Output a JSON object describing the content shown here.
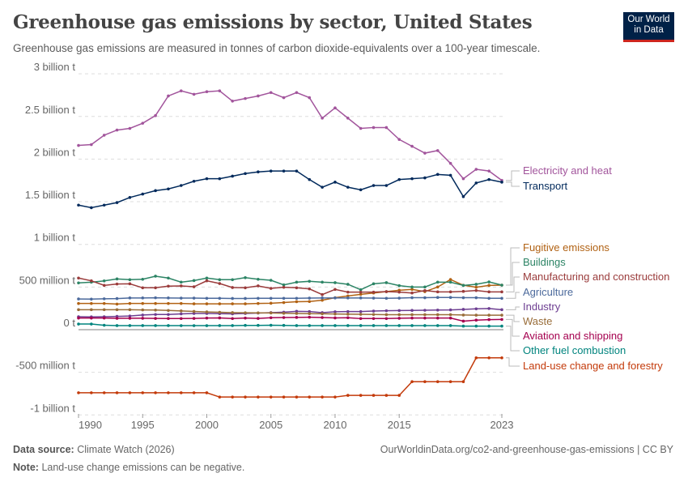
{
  "header": {
    "title": "Greenhouse gas emissions by sector, United States",
    "subtitle": "Greenhouse gas emissions are measured in tonnes of carbon dioxide-equivalents over a 100-year timescale.",
    "logo": "Our World in Data"
  },
  "footer": {
    "source_label": "Data source:",
    "source": "Climate Watch (2026)",
    "url": "OurWorldinData.org/co2-and-greenhouse-gas-emissions | CC BY",
    "note_label": "Note:",
    "note": "Land-use change emissions can be negative."
  },
  "chart_data": {
    "type": "line",
    "title": "Greenhouse gas emissions by sector, United States",
    "xlabel": "",
    "ylabel": "",
    "ylim": [
      -1000000000,
      3000000000
    ],
    "xlim": [
      1990,
      2023
    ],
    "grid": "horizontal dashed",
    "legend": "right, end-labels",
    "y_ticks": [
      {
        "v": 3000000000.0,
        "label": "3 billion t"
      },
      {
        "v": 2500000000.0,
        "label": "2.5 billion t"
      },
      {
        "v": 2000000000.0,
        "label": "2 billion t"
      },
      {
        "v": 1500000000.0,
        "label": "1.5 billion t"
      },
      {
        "v": 1000000000.0,
        "label": "1 billion t"
      },
      {
        "v": 500000000.0,
        "label": "500 million t"
      },
      {
        "v": 0,
        "label": "0 t"
      },
      {
        "v": -500000000.0,
        "label": "-500 million t"
      },
      {
        "v": -1000000000.0,
        "label": "-1 billion t"
      }
    ],
    "x_ticks": [
      "1990",
      "1995",
      "2000",
      "2005",
      "2010",
      "2015",
      "2023"
    ],
    "unit_scale": "million t",
    "series": [
      {
        "name": "Electricity and heat",
        "color": "#a2559c",
        "values": [
          2160,
          2170,
          2280,
          2340,
          2360,
          2420,
          2510,
          2740,
          2800,
          2760,
          2790,
          2800,
          2680,
          2710,
          2740,
          2780,
          2720,
          2780,
          2720,
          2480,
          2600,
          2480,
          2360,
          2370,
          2370,
          2230,
          2150,
          2070,
          2100,
          1950,
          1770,
          1880,
          1860,
          1750
        ]
      },
      {
        "name": "Transport",
        "color": "#00295b",
        "values": [
          1460,
          1430,
          1460,
          1490,
          1550,
          1590,
          1630,
          1650,
          1690,
          1740,
          1770,
          1770,
          1800,
          1830,
          1850,
          1860,
          1860,
          1860,
          1760,
          1670,
          1730,
          1670,
          1640,
          1690,
          1690,
          1760,
          1770,
          1780,
          1820,
          1810,
          1560,
          1720,
          1760,
          1730
        ]
      },
      {
        "name": "Fugitive emissions",
        "color": "#b16214",
        "values": [
          307,
          307,
          307,
          300,
          307,
          307,
          307,
          307,
          307,
          303,
          303,
          303,
          303,
          303,
          307,
          310,
          318,
          328,
          330,
          345,
          375,
          395,
          414,
          430,
          446,
          462,
          472,
          446,
          500,
          588,
          521,
          497,
          519,
          522
        ]
      },
      {
        "name": "Buildings",
        "color": "#2c8465",
        "values": [
          548,
          557,
          572,
          595,
          586,
          591,
          627,
          605,
          557,
          576,
          605,
          586,
          586,
          610,
          591,
          579,
          525,
          557,
          567,
          557,
          551,
          532,
          468,
          538,
          551,
          516,
          500,
          500,
          557,
          557,
          519,
          532,
          560,
          522
        ]
      },
      {
        "name": "Manufacturing and construction",
        "color": "#9a3b3b",
        "values": [
          605,
          573,
          519,
          535,
          538,
          491,
          491,
          510,
          513,
          503,
          573,
          541,
          494,
          491,
          513,
          484,
          497,
          491,
          478,
          411,
          472,
          440,
          440,
          440,
          446,
          440,
          430,
          459,
          443,
          443,
          449,
          459,
          443,
          443
        ]
      },
      {
        "name": "Agriculture",
        "color": "#4c6a9c",
        "values": [
          360,
          358,
          362,
          365,
          372,
          372,
          374,
          372,
          370,
          370,
          368,
          368,
          366,
          366,
          368,
          368,
          368,
          368,
          370,
          372,
          372,
          372,
          372,
          370,
          368,
          370,
          375,
          375,
          378,
          378,
          375,
          375,
          368,
          368
        ]
      },
      {
        "name": "Industry",
        "color": "#6d3e91",
        "values": [
          152,
          150,
          152,
          156,
          160,
          172,
          178,
          178,
          185,
          190,
          190,
          188,
          185,
          190,
          195,
          200,
          205,
          215,
          212,
          200,
          210,
          212,
          212,
          218,
          222,
          224,
          226,
          228,
          230,
          232,
          238,
          244,
          248,
          234
        ]
      },
      {
        "name": "Waste",
        "color": "#996d39",
        "values": [
          234,
          234,
          234,
          234,
          234,
          232,
          230,
          225,
          220,
          214,
          208,
          204,
          200,
          198,
          197,
          196,
          192,
          190,
          188,
          186,
          184,
          182,
          180,
          178,
          176,
          176,
          176,
          176,
          176,
          176,
          172,
          170,
          170,
          170
        ]
      },
      {
        "name": "Aviation and shipping",
        "color": "#a5004f",
        "values": [
          136,
          136,
          136,
          133,
          134,
          134,
          132,
          131,
          130,
          132,
          136,
          138,
          130,
          136,
          132,
          140,
          142,
          144,
          146,
          142,
          138,
          140,
          130,
          130,
          130,
          134,
          136,
          136,
          136,
          136,
          100,
          112,
          118,
          120
        ]
      },
      {
        "name": "Other fuel combustion",
        "color": "#00847e",
        "values": [
          66,
          66,
          52,
          48,
          48,
          48,
          48,
          48,
          47,
          47,
          47,
          48,
          48,
          50,
          50,
          52,
          50,
          48,
          48,
          48,
          48,
          48,
          48,
          48,
          48,
          48,
          48,
          48,
          48,
          48,
          42,
          42,
          42,
          42
        ]
      },
      {
        "name": "Land-use change and forestry",
        "color": "#c33a0a",
        "values": [
          -740,
          -740,
          -740,
          -740,
          -740,
          -740,
          -740,
          -740,
          -740,
          -740,
          -740,
          -790,
          -790,
          -790,
          -790,
          -790,
          -790,
          -790,
          -790,
          -790,
          -790,
          -770,
          -770,
          -770,
          -770,
          -770,
          -610,
          -610,
          -610,
          -610,
          -610,
          -330,
          -330,
          -330
        ]
      }
    ]
  }
}
